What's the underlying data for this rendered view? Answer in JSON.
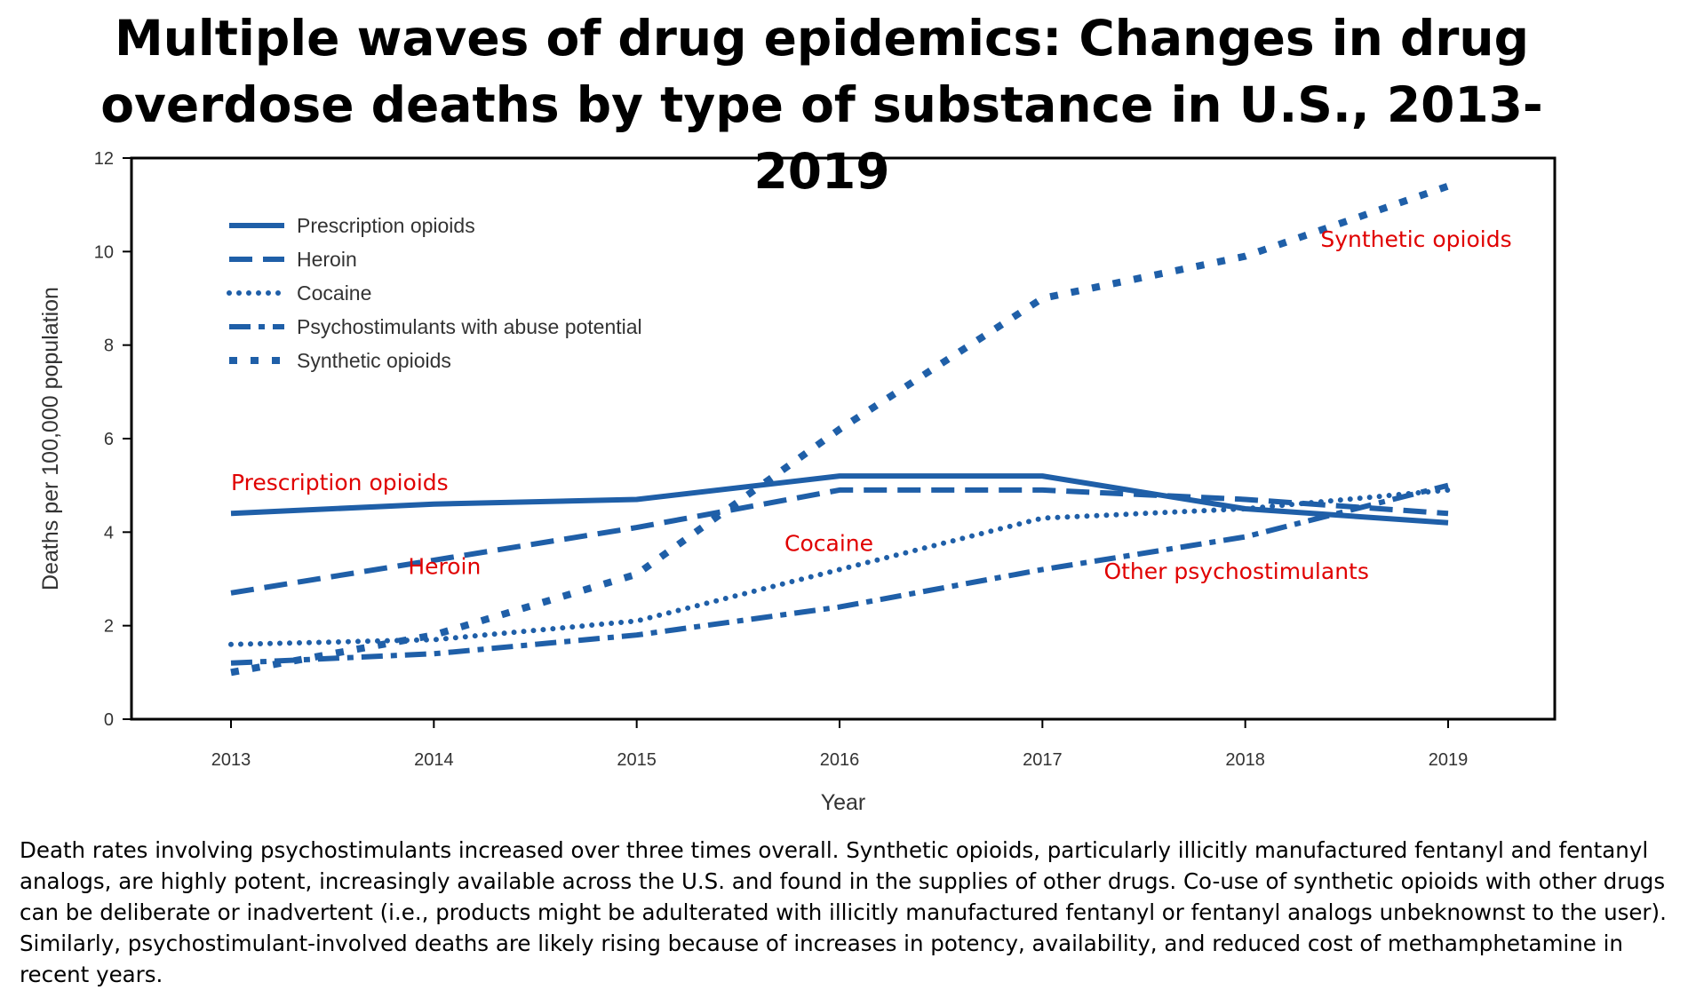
{
  "title": "Multiple waves of drug epidemics: Changes in drug overdose deaths by type of substance in U.S., 2013-2019",
  "caption": "Death rates involving psychostimulants increased over three times overall. Synthetic opioids, particularly illicitly manufactured fentanyl and fentanyl analogs, are highly potent, increasingly available across the U.S. and found in the supplies of other drugs. Co-use of synthetic opioids with other drugs can be deliberate or inadvertent (i.e., products might be adulterated with illicitly manufactured fentanyl or fentanyl analogs unbeknownst to the user). Similarly, psychostimulant-involved deaths are likely rising because of increases in potency, availability, and reduced cost of methamphetamine in recent years.",
  "colors": {
    "line": "#1f5fa8",
    "annotation": "#e00000",
    "axis": "#000000"
  },
  "chart_data": {
    "type": "line",
    "xlabel": "Year",
    "ylabel": "Deaths per 100,000 population",
    "ylim": [
      0,
      12
    ],
    "yticks": [
      0,
      2,
      4,
      6,
      8,
      10,
      12
    ],
    "categories": [
      "2013",
      "2014",
      "2015",
      "2016",
      "2017",
      "2018",
      "2019"
    ],
    "grid": false,
    "legend_position": "top-left",
    "series": [
      {
        "name": "Prescription opioids",
        "style": "solid",
        "values": [
          4.4,
          4.6,
          4.7,
          5.2,
          5.2,
          4.5,
          4.2
        ]
      },
      {
        "name": "Heroin",
        "style": "dashed",
        "values": [
          2.7,
          3.4,
          4.1,
          4.9,
          4.9,
          4.7,
          4.4
        ]
      },
      {
        "name": "Cocaine",
        "style": "dotted",
        "values": [
          1.6,
          1.7,
          2.1,
          3.2,
          4.3,
          4.5,
          4.9
        ]
      },
      {
        "name": "Psychostimulants with abuse potential",
        "style": "dashdot",
        "values": [
          1.2,
          1.4,
          1.8,
          2.4,
          3.2,
          3.9,
          5.0
        ]
      },
      {
        "name": "Synthetic opioids",
        "style": "bigdots",
        "values": [
          1.0,
          1.8,
          3.1,
          6.2,
          9.0,
          9.9,
          11.4
        ]
      }
    ],
    "annotations": [
      {
        "text": "Prescription opioids",
        "x": "2013",
        "y": 4.9
      },
      {
        "text": "Heroin",
        "x": "2014",
        "y": 3.1
      },
      {
        "text": "Cocaine",
        "x": "2016",
        "y": 3.6
      },
      {
        "text": "Other psychostimulants",
        "x": "2018",
        "y": 3.0
      },
      {
        "text": "Synthetic opioids",
        "x": "2019",
        "y": 10.1
      }
    ]
  }
}
